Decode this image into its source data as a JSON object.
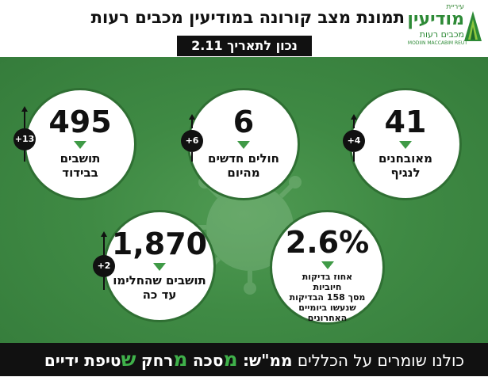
{
  "header": {
    "title": "תמונת מצב קורונה במודיעין מכבים רעות",
    "date_label": "נכון לתאריך 2.11"
  },
  "logo": {
    "prefix": "עיריית",
    "name": "מודיעין",
    "sub": "מכבים רעות",
    "english": "MODIIN MACCABIM REUT"
  },
  "stats": {
    "confirmed": {
      "value": "41",
      "label_1": "מאובחנים",
      "label_2": "לנגיף",
      "change": "+4"
    },
    "new_cases": {
      "value": "6",
      "label_1": "חולים חדשים",
      "label_2": "מהיום",
      "change": "+6"
    },
    "isolation": {
      "value": "495",
      "label_1": "תושבים",
      "label_2": "בבידוד",
      "change": "+13"
    },
    "positive_rate": {
      "value": "2.6%",
      "line_1": "אחוז בדיקות חיוביות",
      "line_2": "מסך 158 הבדיקות",
      "line_3": "שנעשו ביומיים",
      "line_4": "האחרונים"
    },
    "recovered": {
      "value": "1,870",
      "label_1": "תושבים שהחלימו",
      "label_2": "עד כה",
      "change": "+2"
    }
  },
  "footer": {
    "intro": "כולנו שומרים על הכללים",
    "mmsh": "ממ\"ש:",
    "letter_1": "מ",
    "word_1": "סכה",
    "letter_2": "מ",
    "word_2": "רחק",
    "letter_3": "ש",
    "word_3": "טיפת ידיים"
  },
  "colors": {
    "accent_green": "#3f9a46",
    "background_green": "#3f8a44",
    "dark": "#111111"
  }
}
